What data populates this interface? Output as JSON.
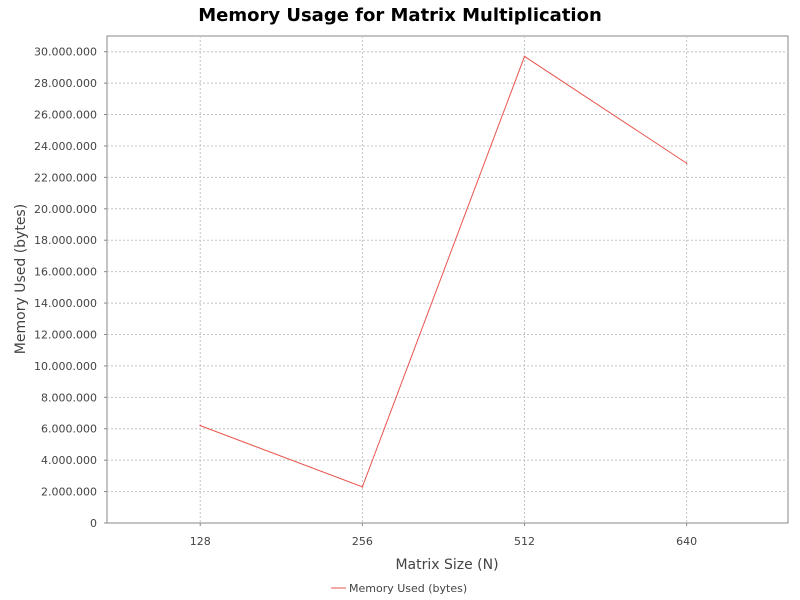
{
  "chart_data": {
    "type": "line",
    "title": "Memory Usage for Matrix Multiplication",
    "xlabel": "Matrix Size (N)",
    "ylabel": "Memory Used (bytes)",
    "categories": [
      "128",
      "256",
      "512",
      "640"
    ],
    "series": [
      {
        "name": "Memory Used (bytes)",
        "color": "#e8554d",
        "values": [
          6200000,
          2300000,
          29700000,
          22900000
        ]
      }
    ],
    "ylim": [
      0,
      31000000
    ],
    "yticks": [
      0,
      2000000,
      4000000,
      6000000,
      8000000,
      10000000,
      12000000,
      14000000,
      16000000,
      18000000,
      20000000,
      22000000,
      24000000,
      26000000,
      28000000,
      30000000
    ],
    "ytick_labels": [
      "0",
      "2.000.000",
      "4.000.000",
      "6.000.000",
      "8.000.000",
      "10.000.000",
      "12.000.000",
      "14.000.000",
      "16.000.000",
      "18.000.000",
      "20.000.000",
      "22.000.000",
      "24.000.000",
      "26.000.000",
      "28.000.000",
      "30.000.000"
    ],
    "grid": true,
    "legend": "bottom-center"
  }
}
